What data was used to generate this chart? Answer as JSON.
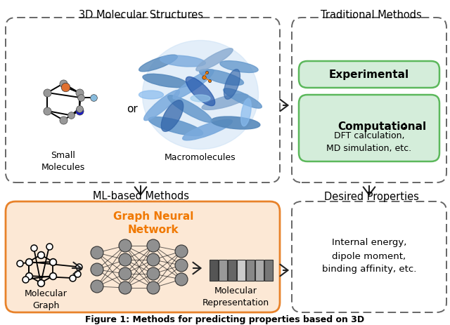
{
  "title_top": "3D Molecular Structures",
  "title_top_right": "Traditional Methods",
  "title_bottom_left": "ML-based Methods",
  "title_bottom_right": "Desired Properties",
  "gnn_label": "Graph Neural\nNetwork",
  "mol_graph_label": "Molecular\nGraph",
  "mol_rep_label": "Molecular\nRepresentation",
  "experimental_label": "Experimental",
  "computational_label": "Computational",
  "computational_colon": ":",
  "computational_sub": "DFT calculation,\nMD simulation, etc.",
  "desired_text": "Internal energy,\ndipole moment,\nbinding affinity, etc.",
  "small_mol_label": "Small\nMolecules",
  "macro_label": "Macromolecules",
  "or_label": "or",
  "figure_caption": "Figure 1: Methods for predicting properties based on 3D",
  "bg_color": "#ffffff",
  "dashed_border_color": "#666666",
  "green_fill": "#d4edda",
  "green_border": "#5cb85c",
  "orange_fill": "#fce8d5",
  "orange_border": "#e8822a",
  "arrow_color": "#222222",
  "gnn_color": "#f07800",
  "node_color": "#909090",
  "node_edge_color": "#333333"
}
